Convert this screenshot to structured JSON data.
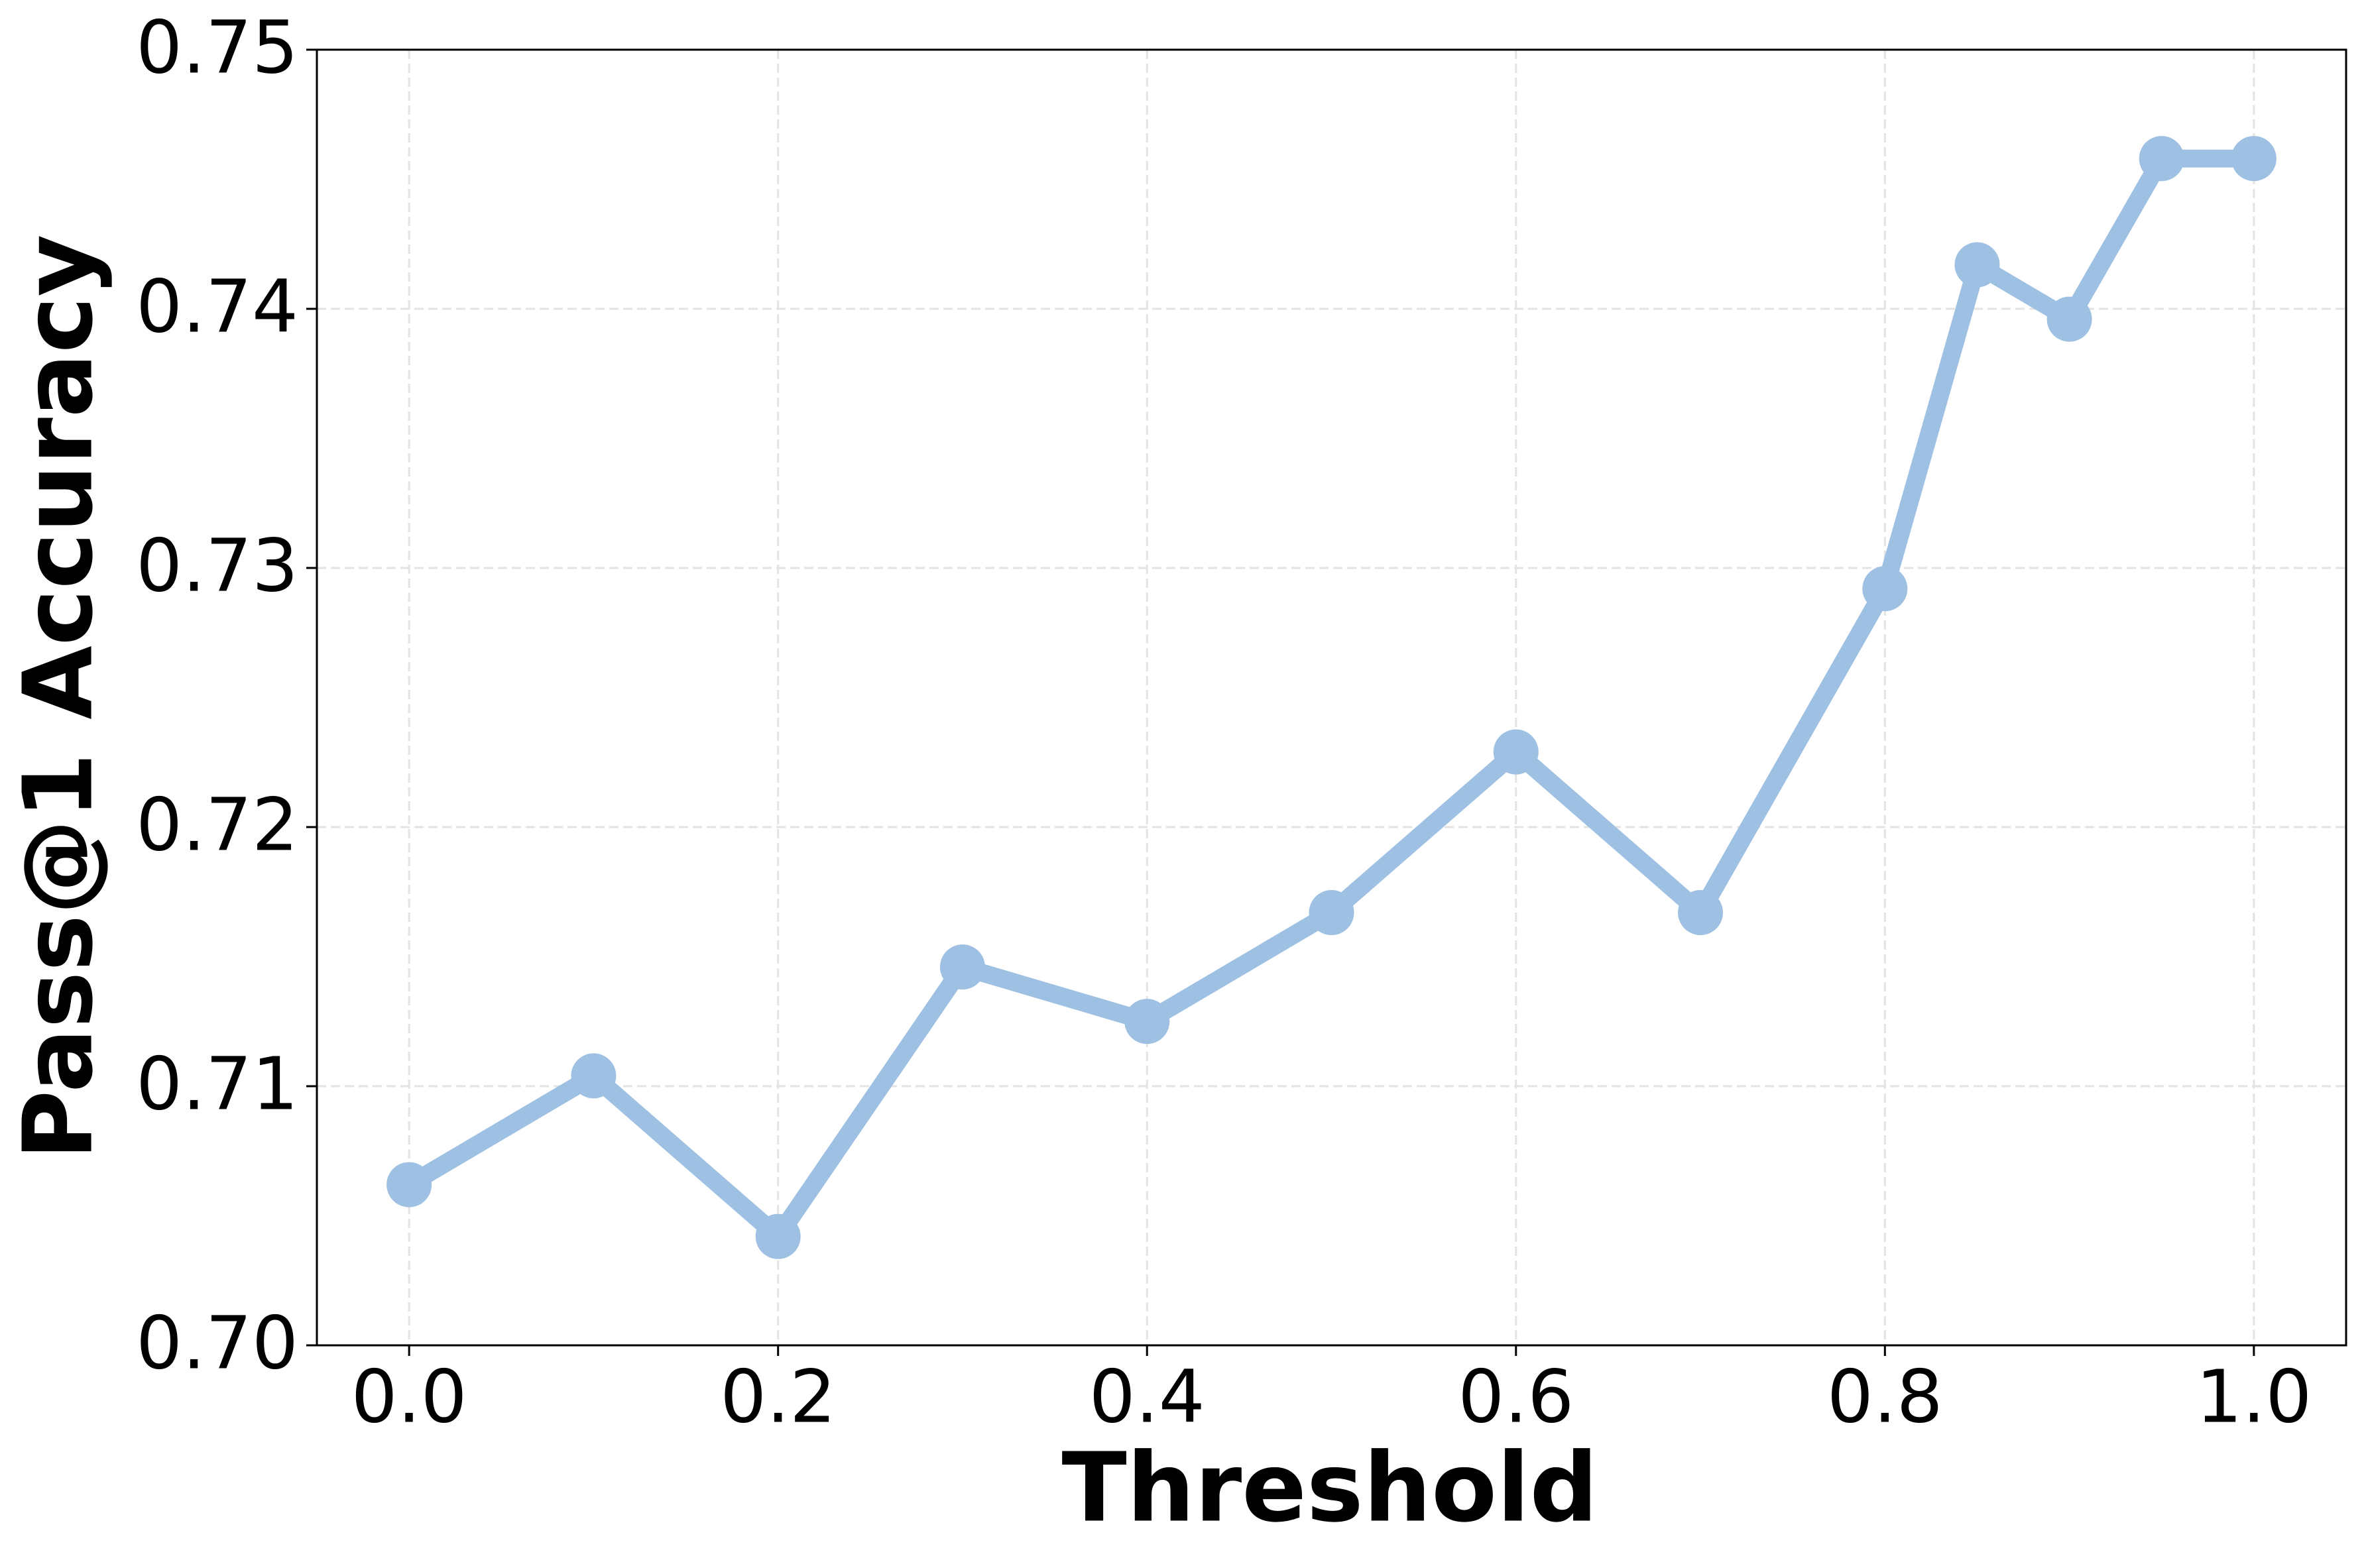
{
  "chart_data": {
    "type": "line",
    "x_label": "Threshold",
    "y_label": "Pass@1 Accuracy",
    "x": [
      0.0,
      0.1,
      0.2,
      0.3,
      0.4,
      0.5,
      0.6,
      0.7,
      0.8,
      0.85,
      0.9,
      0.95,
      1.0
    ],
    "series": [
      {
        "color": "#9dc0e3",
        "values": [
          0.7062,
          0.7104,
          0.7042,
          0.7146,
          0.7125,
          0.7167,
          0.7229,
          0.7167,
          0.7292,
          0.7417,
          0.7396,
          0.7458,
          0.7458
        ]
      }
    ],
    "xlim": [
      -0.05,
      1.05
    ],
    "ylim": [
      0.7,
      0.75
    ],
    "xticks": [
      {
        "value": 0.0,
        "label": "0.0"
      },
      {
        "value": 0.2,
        "label": "0.2"
      },
      {
        "value": 0.4,
        "label": "0.4"
      },
      {
        "value": 0.6,
        "label": "0.6"
      },
      {
        "value": 0.8,
        "label": "0.8"
      },
      {
        "value": 1.0,
        "label": "1.0"
      }
    ],
    "yticks": [
      {
        "value": 0.7,
        "label": "0.70"
      },
      0.71,
      0.72,
      0.73,
      0.74,
      {
        "value": 0.75,
        "label": "0.75"
      }
    ],
    "grid": true
  }
}
